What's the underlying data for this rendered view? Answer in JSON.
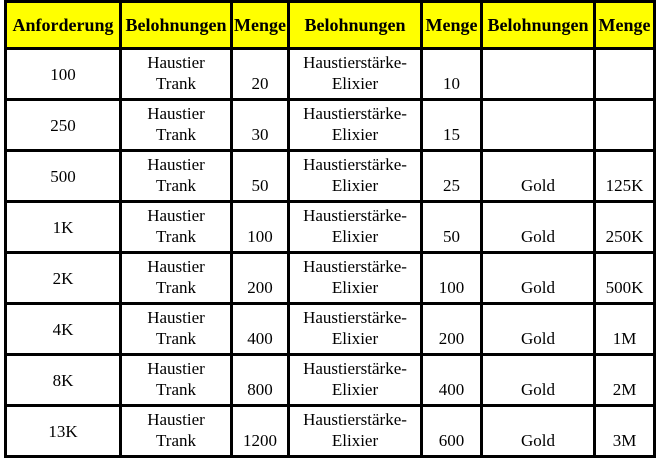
{
  "colors": {
    "header_bg": "#ffff00",
    "border": "#000000",
    "text": "#000000",
    "page_bg": "#ffffff"
  },
  "table": {
    "headers": [
      "Anforderung",
      "Belohnungen",
      "Menge",
      "Belohnungen",
      "Menge",
      "Belohnungen",
      "Menge"
    ],
    "rows": [
      [
        "100",
        "Haustier\nTrank",
        "20",
        "Haustierstärke-\nElixier",
        "10",
        "",
        ""
      ],
      [
        "250",
        "Haustier\nTrank",
        "30",
        "Haustierstärke-\nElixier",
        "15",
        "",
        ""
      ],
      [
        "500",
        "Haustier\nTrank",
        "50",
        "Haustierstärke-\nElixier",
        "25",
        "Gold",
        "125K"
      ],
      [
        "1K",
        "Haustier\nTrank",
        "100",
        "Haustierstärke-\nElixier",
        "50",
        "Gold",
        "250K"
      ],
      [
        "2K",
        "Haustier\nTrank",
        "200",
        "Haustierstärke-\nElixier",
        "100",
        "Gold",
        "500K"
      ],
      [
        "4K",
        "Haustier\nTrank",
        "400",
        "Haustierstärke-\nElixier",
        "200",
        "Gold",
        "1M"
      ],
      [
        "8K",
        "Haustier\nTrank",
        "800",
        "Haustierstärke-\nElixier",
        "400",
        "Gold",
        "2M"
      ],
      [
        "13K",
        "Haustier\nTrank",
        "1200",
        "Haustierstärke-\nElixier",
        "600",
        "Gold",
        "3M"
      ]
    ]
  }
}
